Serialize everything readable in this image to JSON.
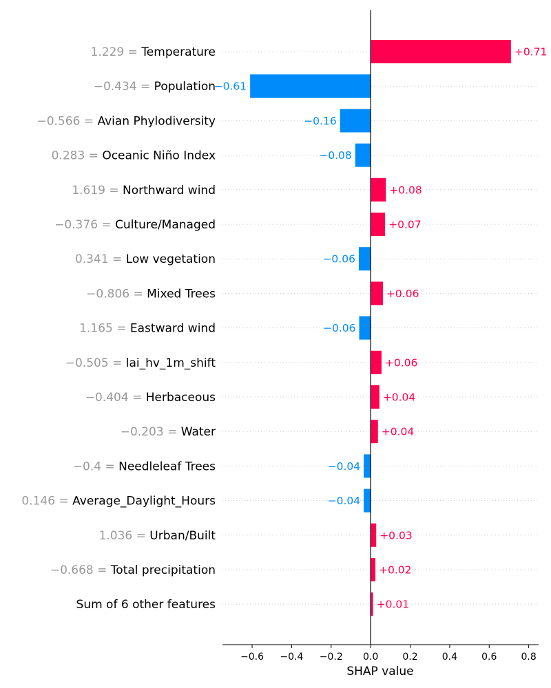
{
  "chart_data": {
    "type": "bar",
    "orientation": "horizontal",
    "style": "shap-waterfall-bar",
    "xlabel": "SHAP value",
    "xlim": [
      -0.75,
      0.85
    ],
    "xticks": [
      -0.6,
      -0.4,
      -0.2,
      0.0,
      0.2,
      0.4,
      0.6,
      0.8
    ],
    "xtick_labels": [
      "−0.6",
      "−0.4",
      "−0.2",
      "0.0",
      "0.2",
      "0.4",
      "0.6",
      "0.8"
    ],
    "grid": "dotted horizontal guide lines",
    "colors": {
      "positive": "#ff0051",
      "negative": "#008bfb"
    },
    "features": [
      {
        "value_label": "1.229",
        "name": "Temperature",
        "shap": 0.71,
        "label": "+0.71"
      },
      {
        "value_label": "−0.434",
        "name": "Population",
        "shap": -0.61,
        "label": "−0.61"
      },
      {
        "value_label": "−0.566",
        "name": "Avian Phylodiversity",
        "shap": -0.155,
        "label": "−0.16"
      },
      {
        "value_label": "0.283",
        "name": "Oceanic Niño Index",
        "shap": -0.078,
        "label": "−0.08"
      },
      {
        "value_label": "1.619",
        "name": "Northward wind",
        "shap": 0.077,
        "label": "+0.08"
      },
      {
        "value_label": "−0.376",
        "name": "Culture/Managed",
        "shap": 0.073,
        "label": "+0.07"
      },
      {
        "value_label": "0.341",
        "name": "Low vegetation",
        "shap": -0.06,
        "label": "−0.06"
      },
      {
        "value_label": "−0.806",
        "name": "Mixed Trees",
        "shap": 0.062,
        "label": "+0.06"
      },
      {
        "value_label": "1.165",
        "name": "Eastward wind",
        "shap": -0.058,
        "label": "−0.06"
      },
      {
        "value_label": "−0.505",
        "name": "lai_hv_1m_shift",
        "shap": 0.055,
        "label": "+0.06"
      },
      {
        "value_label": "−0.404",
        "name": "Herbaceous",
        "shap": 0.044,
        "label": "+0.04"
      },
      {
        "value_label": "−0.203",
        "name": "Water",
        "shap": 0.037,
        "label": "+0.04"
      },
      {
        "value_label": "−0.4",
        "name": "Needleleaf Trees",
        "shap": -0.035,
        "label": "−0.04"
      },
      {
        "value_label": "0.146",
        "name": "Average_Daylight_Hours",
        "shap": -0.035,
        "label": "−0.04"
      },
      {
        "value_label": "1.036",
        "name": "Urban/Built",
        "shap": 0.028,
        "label": "+0.03"
      },
      {
        "value_label": "−0.668",
        "name": "Total precipitation",
        "shap": 0.024,
        "label": "+0.02"
      },
      {
        "value_label": "",
        "name": "Sum of 6 other features",
        "shap": 0.012,
        "label": "+0.01"
      }
    ]
  }
}
